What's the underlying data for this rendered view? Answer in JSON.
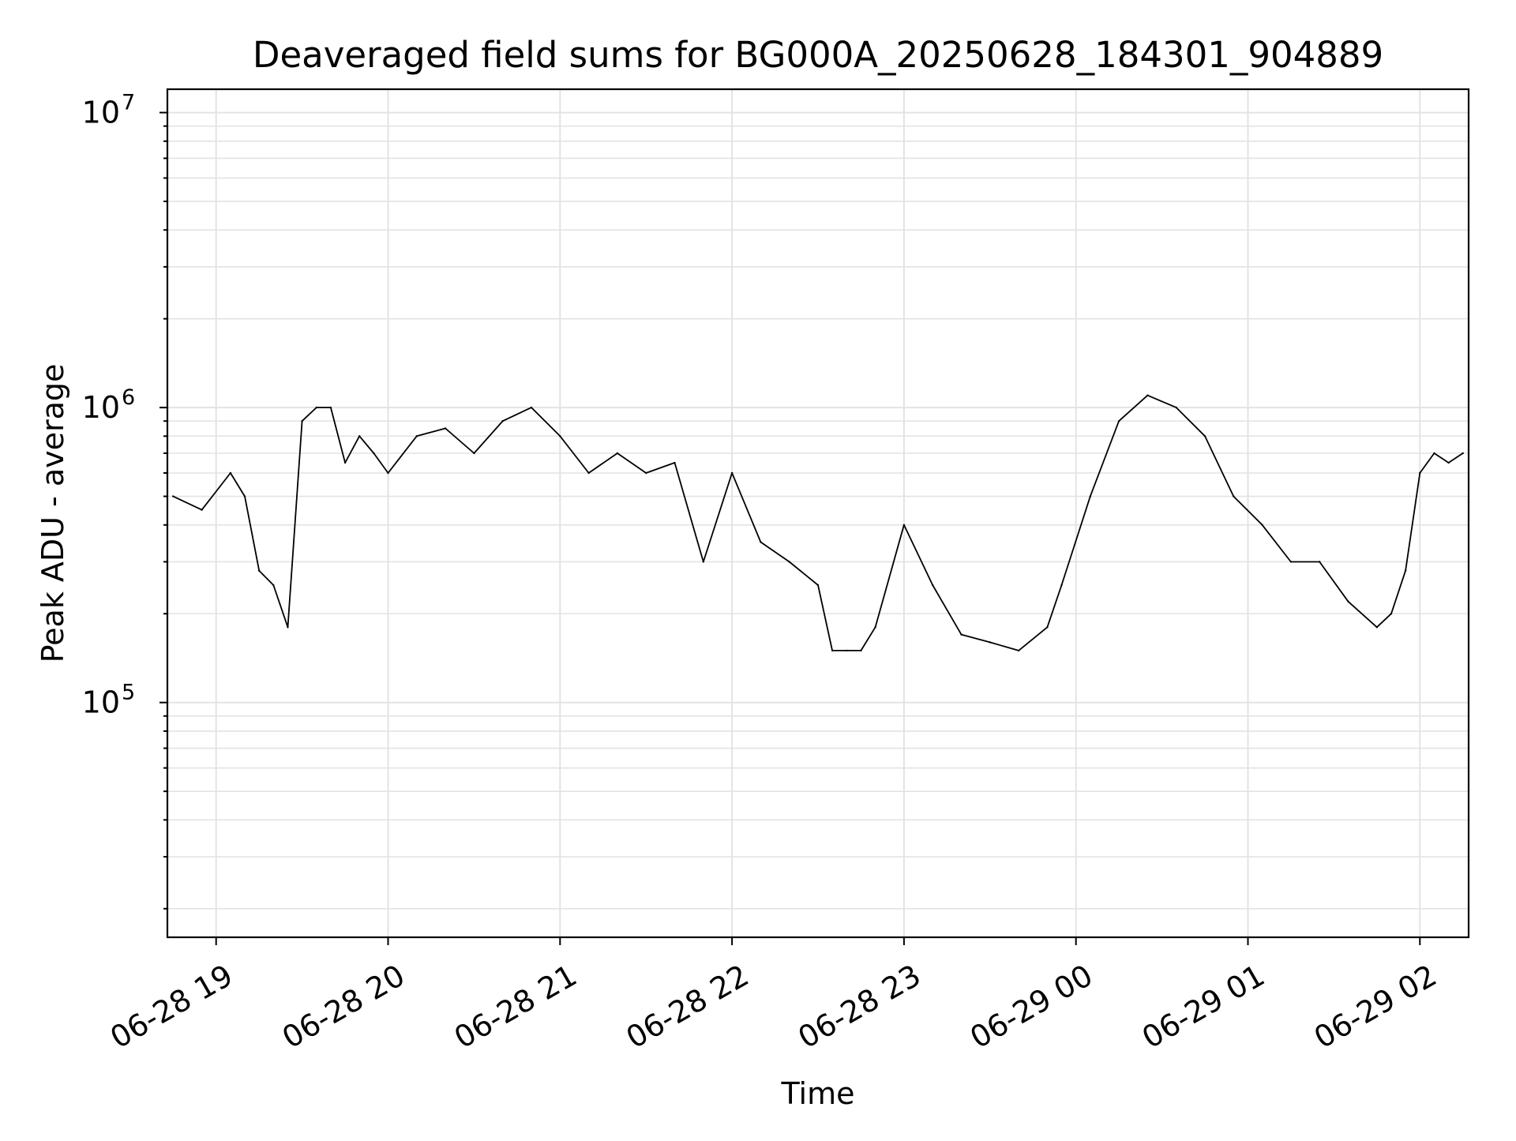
{
  "chart_data": {
    "type": "line",
    "title": "Deaveraged field sums for BG000A_20250628_184301_904889",
    "xlabel": "Time",
    "ylabel": "Peak ADU - average",
    "x_tick_labels": [
      "06-28 19",
      "06-28 20",
      "06-28 21",
      "06-28 22",
      "06-28 23",
      "06-29 00",
      "06-29 01",
      "06-29 02"
    ],
    "x_tick_times": [
      "2025-06-28T19:00",
      "2025-06-28T20:00",
      "2025-06-28T21:00",
      "2025-06-28T22:00",
      "2025-06-28T23:00",
      "2025-06-29T00:00",
      "2025-06-29T01:00",
      "2025-06-29T02:00"
    ],
    "xlim": [
      "2025-06-28T18:43",
      "2025-06-29T02:17"
    ],
    "y_tick_labels": [
      {
        "base": "10",
        "exp": "5",
        "value": 100000
      },
      {
        "base": "10",
        "exp": "6",
        "value": 1000000
      },
      {
        "base": "10",
        "exp": "7",
        "value": 10000000
      }
    ],
    "y_scale": "log",
    "ylim": [
      16000,
      12000000
    ],
    "grid": true,
    "line_color": "#000000",
    "series": [
      {
        "x": [
          "2025-06-28T18:45",
          "2025-06-28T18:55",
          "2025-06-28T19:05",
          "2025-06-28T19:10",
          "2025-06-28T19:15",
          "2025-06-28T19:20",
          "2025-06-28T19:25",
          "2025-06-28T19:30",
          "2025-06-28T19:35",
          "2025-06-28T19:40",
          "2025-06-28T19:45",
          "2025-06-28T19:50",
          "2025-06-28T19:55",
          "2025-06-28T20:00",
          "2025-06-28T20:10",
          "2025-06-28T20:20",
          "2025-06-28T20:30",
          "2025-06-28T20:40",
          "2025-06-28T20:50",
          "2025-06-28T21:00",
          "2025-06-28T21:10",
          "2025-06-28T21:20",
          "2025-06-28T21:30",
          "2025-06-28T21:40",
          "2025-06-28T21:50",
          "2025-06-28T22:00",
          "2025-06-28T22:10",
          "2025-06-28T22:20",
          "2025-06-28T22:30",
          "2025-06-28T22:35",
          "2025-06-28T22:40",
          "2025-06-28T22:45",
          "2025-06-28T22:50",
          "2025-06-28T23:00",
          "2025-06-28T23:10",
          "2025-06-28T23:20",
          "2025-06-28T23:30",
          "2025-06-28T23:40",
          "2025-06-28T23:50",
          "2025-06-28T23:55",
          "2025-06-29T00:05",
          "2025-06-29T00:15",
          "2025-06-29T00:25",
          "2025-06-29T00:35",
          "2025-06-29T00:45",
          "2025-06-29T00:55",
          "2025-06-29T01:05",
          "2025-06-29T01:15",
          "2025-06-29T01:25",
          "2025-06-29T01:35",
          "2025-06-29T01:45",
          "2025-06-29T01:50",
          "2025-06-29T01:55",
          "2025-06-29T02:00",
          "2025-06-29T02:05",
          "2025-06-29T02:10",
          "2025-06-29T02:15"
        ],
        "y": [
          500000,
          450000,
          600000,
          500000,
          280000,
          250000,
          180000,
          900000,
          1000000,
          1000000,
          650000,
          800000,
          700000,
          600000,
          800000,
          850000,
          700000,
          900000,
          1000000,
          800000,
          600000,
          700000,
          600000,
          650000,
          300000,
          600000,
          350000,
          300000,
          250000,
          150000,
          150000,
          150000,
          180000,
          400000,
          250000,
          170000,
          160000,
          150000,
          180000,
          250000,
          500000,
          900000,
          1100000,
          1000000,
          800000,
          500000,
          400000,
          300000,
          300000,
          220000,
          180000,
          200000,
          280000,
          600000,
          700000,
          650000,
          700000
        ]
      }
    ]
  }
}
